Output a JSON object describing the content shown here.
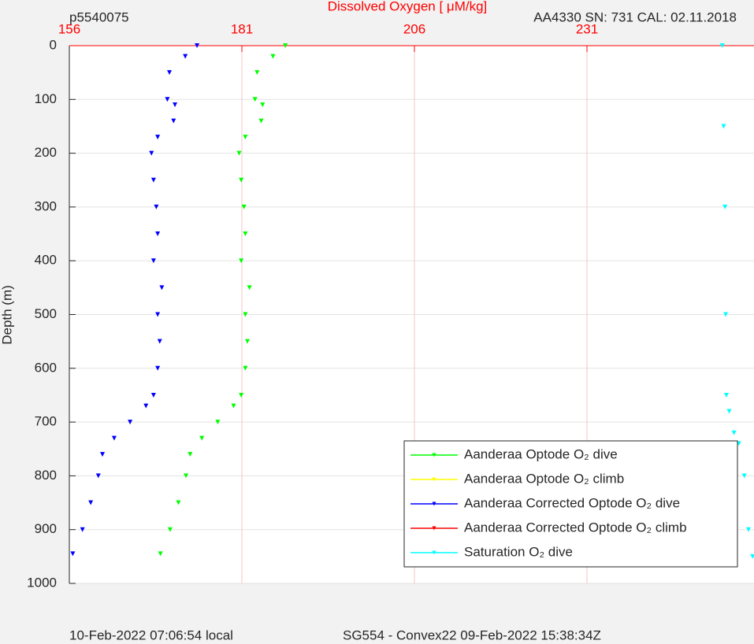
{
  "chart_data": {
    "type": "scatter",
    "title": "Dissolved Oxygen [   μM/kg]",
    "left_label": "p5540075",
    "right_label": "AA4330   SN: 731   CAL: 02.11.2018",
    "y_label": "Depth (m)",
    "footer_left": "10-Feb-2022 07:06:54 local",
    "footer_right": "SG554 - Convex22 09-Feb-2022 15:38:34Z",
    "xlim": [
      156,
      255.2
    ],
    "xticks": [
      156,
      181,
      206,
      231
    ],
    "ylim": [
      1000,
      0
    ],
    "yticks": [
      0,
      100,
      200,
      300,
      400,
      500,
      600,
      700,
      800,
      900,
      1000
    ],
    "grid": true,
    "legend": "lower right",
    "series": [
      {
        "name": "Aanderaa Optode O₂ dive",
        "color": "#00ff00",
        "x": [
          187.3,
          185.5,
          183.2,
          182.9,
          184.0,
          183.8,
          181.5,
          180.6,
          180.9,
          181.3,
          181.5,
          180.9,
          182.1,
          181.5,
          181.8,
          181.5,
          180.9,
          179.8,
          177.5,
          175.2,
          173.5,
          172.9,
          171.8,
          170.6,
          169.2
        ],
        "y": [
          0,
          20,
          50,
          100,
          110,
          140,
          170,
          200,
          250,
          300,
          350,
          400,
          450,
          500,
          550,
          600,
          650,
          670,
          700,
          730,
          760,
          800,
          850,
          900,
          945
        ]
      },
      {
        "name": "Aanderaa Optode O₂ climb",
        "color": "#ffff00",
        "x": [],
        "y": []
      },
      {
        "name": "Aanderaa Corrected Optode O₂ dive",
        "color": "#0000ff",
        "x": [
          174.5,
          172.8,
          170.5,
          170.2,
          171.3,
          171.1,
          168.8,
          167.9,
          168.2,
          168.6,
          168.8,
          168.2,
          169.4,
          168.8,
          169.1,
          168.8,
          168.2,
          167.1,
          164.8,
          162.5,
          160.8,
          160.2,
          159.1,
          157.9,
          156.5
        ],
        "y": [
          0,
          20,
          50,
          100,
          110,
          140,
          170,
          200,
          250,
          300,
          350,
          400,
          450,
          500,
          550,
          600,
          650,
          670,
          700,
          730,
          760,
          800,
          850,
          900,
          945
        ]
      },
      {
        "name": "Aanderaa Corrected Optode O₂ climb",
        "color": "#ff0000",
        "x": [],
        "y": []
      },
      {
        "name": "Saturation O₂ dive",
        "color": "#00ffff",
        "x": [
          250.6,
          250.8,
          251.0,
          251.1,
          251.2,
          251.6,
          252.3,
          253.0,
          253.8,
          254.4,
          255.0
        ],
        "y": [
          0,
          150,
          300,
          500,
          650,
          680,
          720,
          740,
          800,
          900,
          950
        ]
      }
    ]
  }
}
